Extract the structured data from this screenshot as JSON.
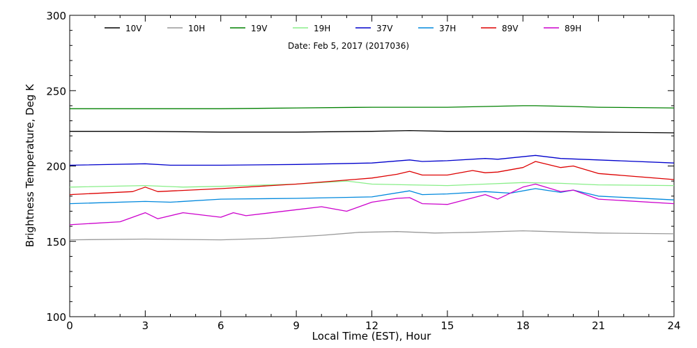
{
  "chart_data": {
    "type": "line",
    "title": "",
    "annotation": "Date: Feb  5, 2017 (2017036)",
    "xlabel": "Local Time (EST), Hour",
    "ylabel": "Brightness Temperature, Deg K",
    "xlim": [
      0,
      24
    ],
    "ylim": [
      100,
      300
    ],
    "xticks": [
      0,
      3,
      6,
      9,
      12,
      15,
      18,
      21,
      24
    ],
    "yticks": [
      100,
      150,
      200,
      250,
      300
    ],
    "grid": false,
    "legend_position": "top",
    "series": [
      {
        "name": "10V",
        "color": "#000000",
        "x": [
          0,
          3,
          6,
          9,
          12,
          13.5,
          15,
          18,
          21,
          24
        ],
        "y": [
          223,
          223,
          222.5,
          222.5,
          223,
          223.5,
          223,
          223,
          222.5,
          222
        ]
      },
      {
        "name": "10H",
        "color": "#999999",
        "x": [
          0,
          3,
          6,
          8,
          10,
          11.5,
          13,
          14.5,
          16,
          18,
          21,
          24
        ],
        "y": [
          151,
          151.5,
          151,
          152,
          154,
          156,
          156.5,
          155.5,
          156,
          157,
          155.5,
          155
        ]
      },
      {
        "name": "19V",
        "color": "#008000",
        "x": [
          0,
          3,
          6,
          9,
          12,
          15,
          18,
          18.5,
          20,
          21,
          24
        ],
        "y": [
          238,
          238,
          238,
          238.5,
          239,
          239,
          240,
          240,
          239.5,
          239,
          238.5
        ]
      },
      {
        "name": "19H",
        "color": "#88ee88",
        "x": [
          0,
          3,
          4.5,
          6,
          9,
          11,
          12,
          13.5,
          15,
          16.5,
          18,
          19.5,
          21,
          24
        ],
        "y": [
          186,
          187,
          186,
          186.5,
          188,
          190,
          188,
          187.5,
          187,
          188,
          189,
          188.5,
          187.5,
          187
        ]
      },
      {
        "name": "37V",
        "color": "#0000cc",
        "x": [
          0,
          3,
          4,
          6,
          9,
          12,
          13.5,
          14,
          15,
          16.5,
          17,
          18.5,
          19.5,
          21,
          24
        ],
        "y": [
          200.5,
          201.5,
          200.5,
          200.5,
          201,
          202,
          204,
          203,
          203.5,
          205,
          204.5,
          207,
          205,
          204,
          202
        ]
      },
      {
        "name": "37H",
        "color": "#0088dd",
        "x": [
          0,
          3,
          4,
          6,
          9,
          12,
          13.5,
          14,
          15,
          16.5,
          17.5,
          18.5,
          19.5,
          20,
          21,
          24
        ],
        "y": [
          175,
          176.5,
          176,
          178,
          178.5,
          179.5,
          183.5,
          181,
          181.5,
          183,
          182,
          185,
          182.5,
          184,
          180,
          177.5
        ]
      },
      {
        "name": "89V",
        "color": "#dd0000",
        "x": [
          0,
          2.5,
          3,
          3.5,
          6,
          9,
          12,
          13,
          13.5,
          14,
          15,
          16,
          16.5,
          17,
          18,
          18.5,
          19.5,
          20,
          21,
          24
        ],
        "y": [
          181,
          183,
          186,
          183,
          185,
          188,
          192,
          194.5,
          196.5,
          194,
          194,
          197,
          195.5,
          196,
          199,
          203,
          199,
          200,
          195,
          191
        ]
      },
      {
        "name": "89H",
        "color": "#cc00cc",
        "x": [
          0,
          2,
          3,
          3.5,
          4.5,
          6,
          6.5,
          7,
          9,
          10,
          11,
          12,
          13,
          13.5,
          14,
          15,
          16.5,
          17,
          18,
          18.5,
          19.5,
          20,
          21,
          24
        ],
        "y": [
          161,
          163,
          169,
          165,
          169,
          166,
          169,
          167,
          171,
          173,
          170,
          176,
          178.5,
          179,
          175,
          174.5,
          181,
          178,
          186,
          188,
          183,
          184,
          178,
          175
        ]
      }
    ]
  }
}
